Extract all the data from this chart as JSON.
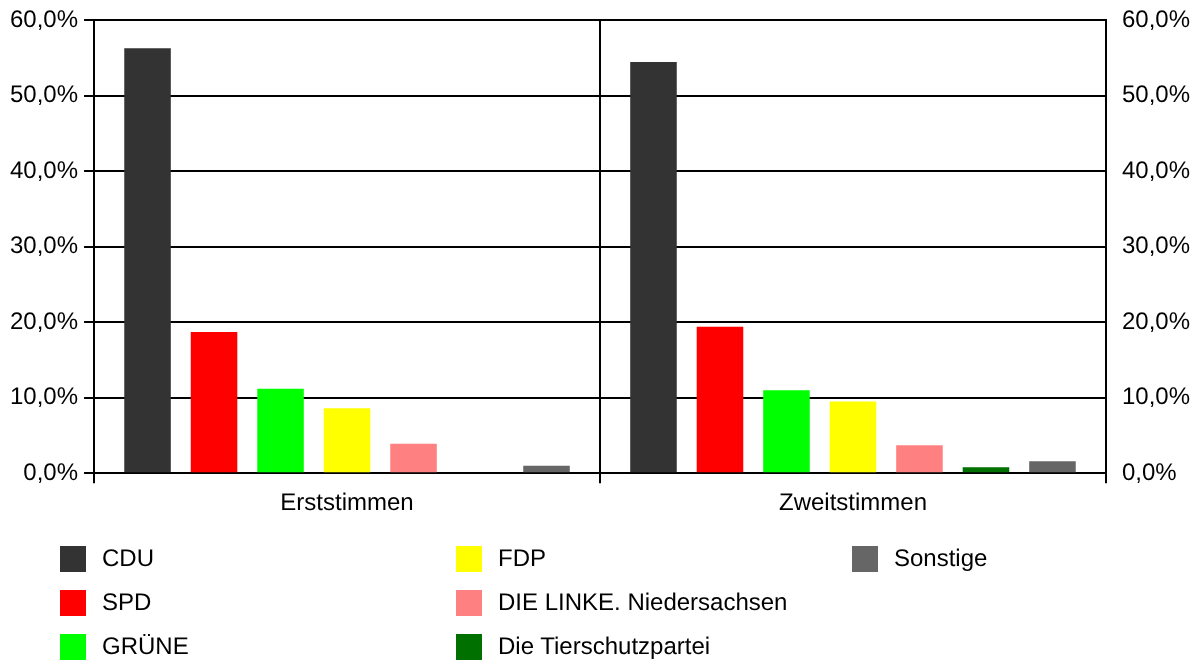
{
  "chart_data": {
    "type": "bar",
    "categories": [
      "Erststimmen",
      "Zweitstimmen"
    ],
    "series": [
      {
        "name": "CDU",
        "color": "#333333",
        "values": [
          56.3,
          54.5
        ]
      },
      {
        "name": "SPD",
        "color": "#ff0000",
        "values": [
          18.7,
          19.4
        ]
      },
      {
        "name": "GRÜNE",
        "color": "#00ff00",
        "values": [
          11.2,
          11.0
        ]
      },
      {
        "name": "FDP",
        "color": "#ffff00",
        "values": [
          8.6,
          9.5
        ]
      },
      {
        "name": "DIE LINKE. Niedersachsen",
        "color": "#ff8080",
        "values": [
          3.9,
          3.7
        ]
      },
      {
        "name": "Die Tierschutzpartei",
        "color": "#007000",
        "values": [
          null,
          0.8
        ]
      },
      {
        "name": "Sonstige",
        "color": "#666666",
        "values": [
          1.0,
          1.6
        ]
      }
    ],
    "ylim": [
      0,
      60
    ],
    "yticks": [
      {
        "value": 0,
        "label": "0,0%"
      },
      {
        "value": 10,
        "label": "10,0%"
      },
      {
        "value": 20,
        "label": "20,0%"
      },
      {
        "value": 30,
        "label": "30,0%"
      },
      {
        "value": 40,
        "label": "40,0%"
      },
      {
        "value": 50,
        "label": "50,0%"
      },
      {
        "value": 60,
        "label": "60,0%"
      }
    ],
    "y2lim": [
      0,
      60
    ],
    "y2ticks": [
      {
        "value": 0,
        "label": "0,0%"
      },
      {
        "value": 10,
        "label": "10,0%"
      },
      {
        "value": 20,
        "label": "20,0%"
      },
      {
        "value": 30,
        "label": "30,0%"
      },
      {
        "value": 40,
        "label": "40,0%"
      },
      {
        "value": 50,
        "label": "50,0%"
      },
      {
        "value": 60,
        "label": "60,0%"
      }
    ],
    "grid": true,
    "legend": "bottom"
  }
}
